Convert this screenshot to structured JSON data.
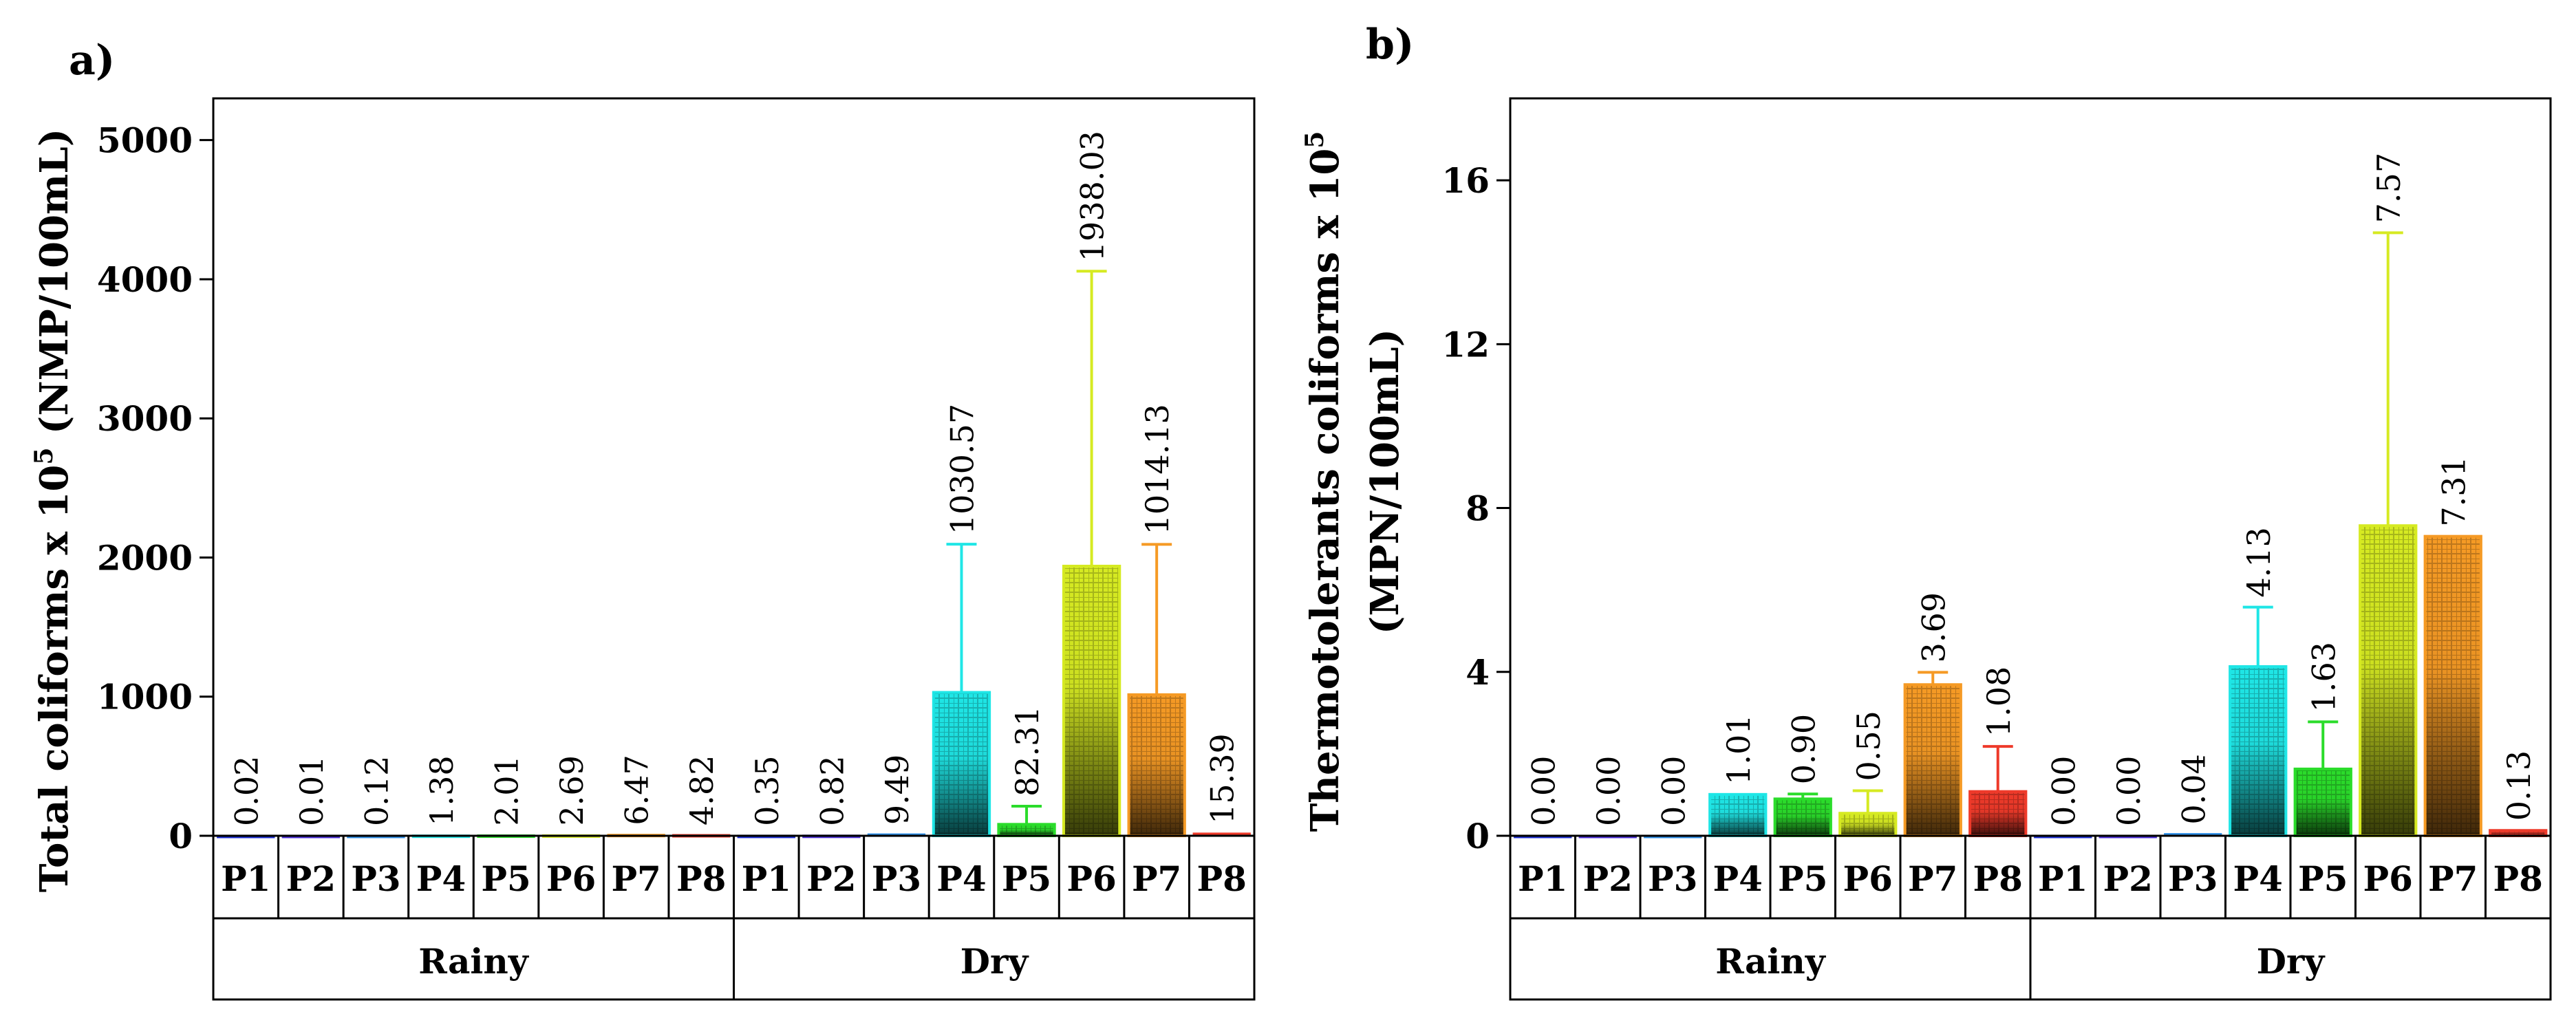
{
  "chart_data": [
    {
      "panel": "a)",
      "type": "bar",
      "ylabel_main": "Total coliforms x 10",
      "ylabel_sup": "5",
      "ylabel_tail": " (NMP/100mL)",
      "ylim": [
        0,
        5300
      ],
      "yticks": [
        0,
        1000,
        2000,
        3000,
        4000,
        5000
      ],
      "groups": [
        "Rainy",
        "Dry"
      ],
      "categories": [
        "P1",
        "P2",
        "P3",
        "P4",
        "P5",
        "P6",
        "P7",
        "P8"
      ],
      "series": [
        {
          "name": "Rainy",
          "values": [
            0.02,
            0.01,
            0.12,
            1.38,
            2.01,
            2.69,
            6.47,
            4.82
          ],
          "labels": [
            "0.02",
            "0.01",
            "0.12",
            "1.38",
            "2.01",
            "2.69",
            "6.47",
            "4.82"
          ],
          "errors": [
            0,
            0,
            0,
            0,
            0,
            0,
            0,
            0
          ]
        },
        {
          "name": "Dry",
          "values": [
            0.35,
            0.82,
            9.49,
            1030.57,
            82.31,
            1938.03,
            1014.13,
            15.39
          ],
          "labels": [
            "0.35",
            "0.82",
            "9.49",
            "1030.57",
            "82.31",
            "1938.03",
            "1014.13",
            "15.39"
          ],
          "errors": [
            0,
            0,
            0,
            1065,
            130,
            2120,
            1080,
            0
          ]
        }
      ]
    },
    {
      "panel": "b)",
      "type": "bar",
      "ylabel_main": "Thermotolerants coliforms x 10",
      "ylabel_sup": "5",
      "ylabel_line2": "(MPN/100mL)",
      "ylim": [
        0,
        18
      ],
      "yticks": [
        0,
        4,
        8,
        12,
        16
      ],
      "groups": [
        "Rainy",
        "Dry"
      ],
      "categories": [
        "P1",
        "P2",
        "P3",
        "P4",
        "P5",
        "P6",
        "P7",
        "P8"
      ],
      "series": [
        {
          "name": "Rainy",
          "values": [
            0.0,
            0.0,
            0.0,
            1.01,
            0.9,
            0.55,
            3.69,
            1.08
          ],
          "labels": [
            "0.00",
            "0.00",
            "0.00",
            "1.01",
            "0.90",
            "0.55",
            "3.69",
            "1.08"
          ],
          "errors": [
            0,
            0,
            0,
            0,
            0.12,
            0.55,
            0.3,
            1.1
          ]
        },
        {
          "name": "Dry",
          "values": [
            0.0,
            0.0,
            0.04,
            4.13,
            1.63,
            7.57,
            7.31,
            0.13
          ],
          "labels": [
            "0.00",
            "0.00",
            "0.04",
            "4.13",
            "1.63",
            "7.57",
            "7.31",
            "0.13"
          ],
          "errors": [
            0,
            0,
            0,
            1.45,
            1.15,
            7.15,
            0,
            0
          ]
        }
      ]
    }
  ],
  "colors": {
    "P1": "#1c2fd6",
    "P2": "#4b2fd8",
    "P3": "#2e8fe8",
    "P4": "#1fe6e6",
    "P5": "#2bdc2b",
    "P6": "#d6ea22",
    "P7": "#f59a25",
    "P8": "#ee3a2a"
  }
}
